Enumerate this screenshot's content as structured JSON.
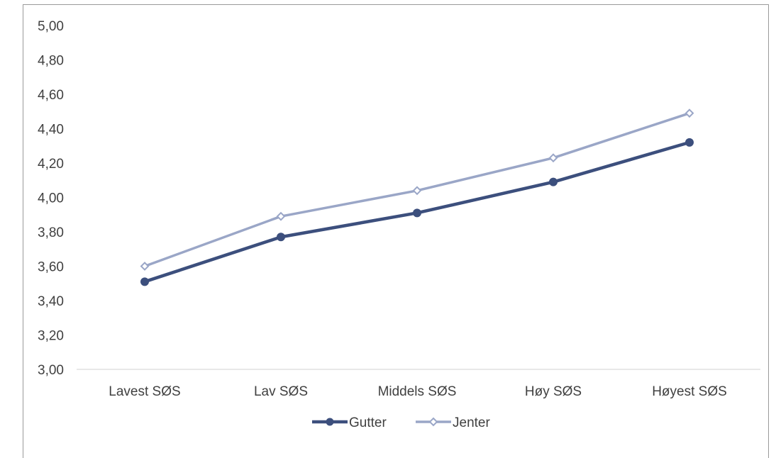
{
  "chart_data": {
    "type": "line",
    "categories": [
      "Lavest SØS",
      "Lav SØS",
      "Middels SØS",
      "Høy SØS",
      "Høyest SØS"
    ],
    "series": [
      {
        "name": "Gutter",
        "values": [
          3.51,
          3.77,
          3.91,
          4.09,
          4.32
        ],
        "color": "#3c4f7d",
        "marker": "circle"
      },
      {
        "name": "Jenter",
        "values": [
          3.6,
          3.89,
          4.04,
          4.23,
          4.49
        ],
        "color": "#9aa6c7",
        "marker": "diamond"
      }
    ],
    "ylim": [
      3.0,
      5.0
    ],
    "ytick_labels": [
      "3,00",
      "3,20",
      "3,40",
      "3,60",
      "3,80",
      "4,00",
      "4,20",
      "4,40",
      "4,60",
      "4,80",
      "5,00"
    ],
    "grid": false,
    "legend_position": "bottom"
  }
}
